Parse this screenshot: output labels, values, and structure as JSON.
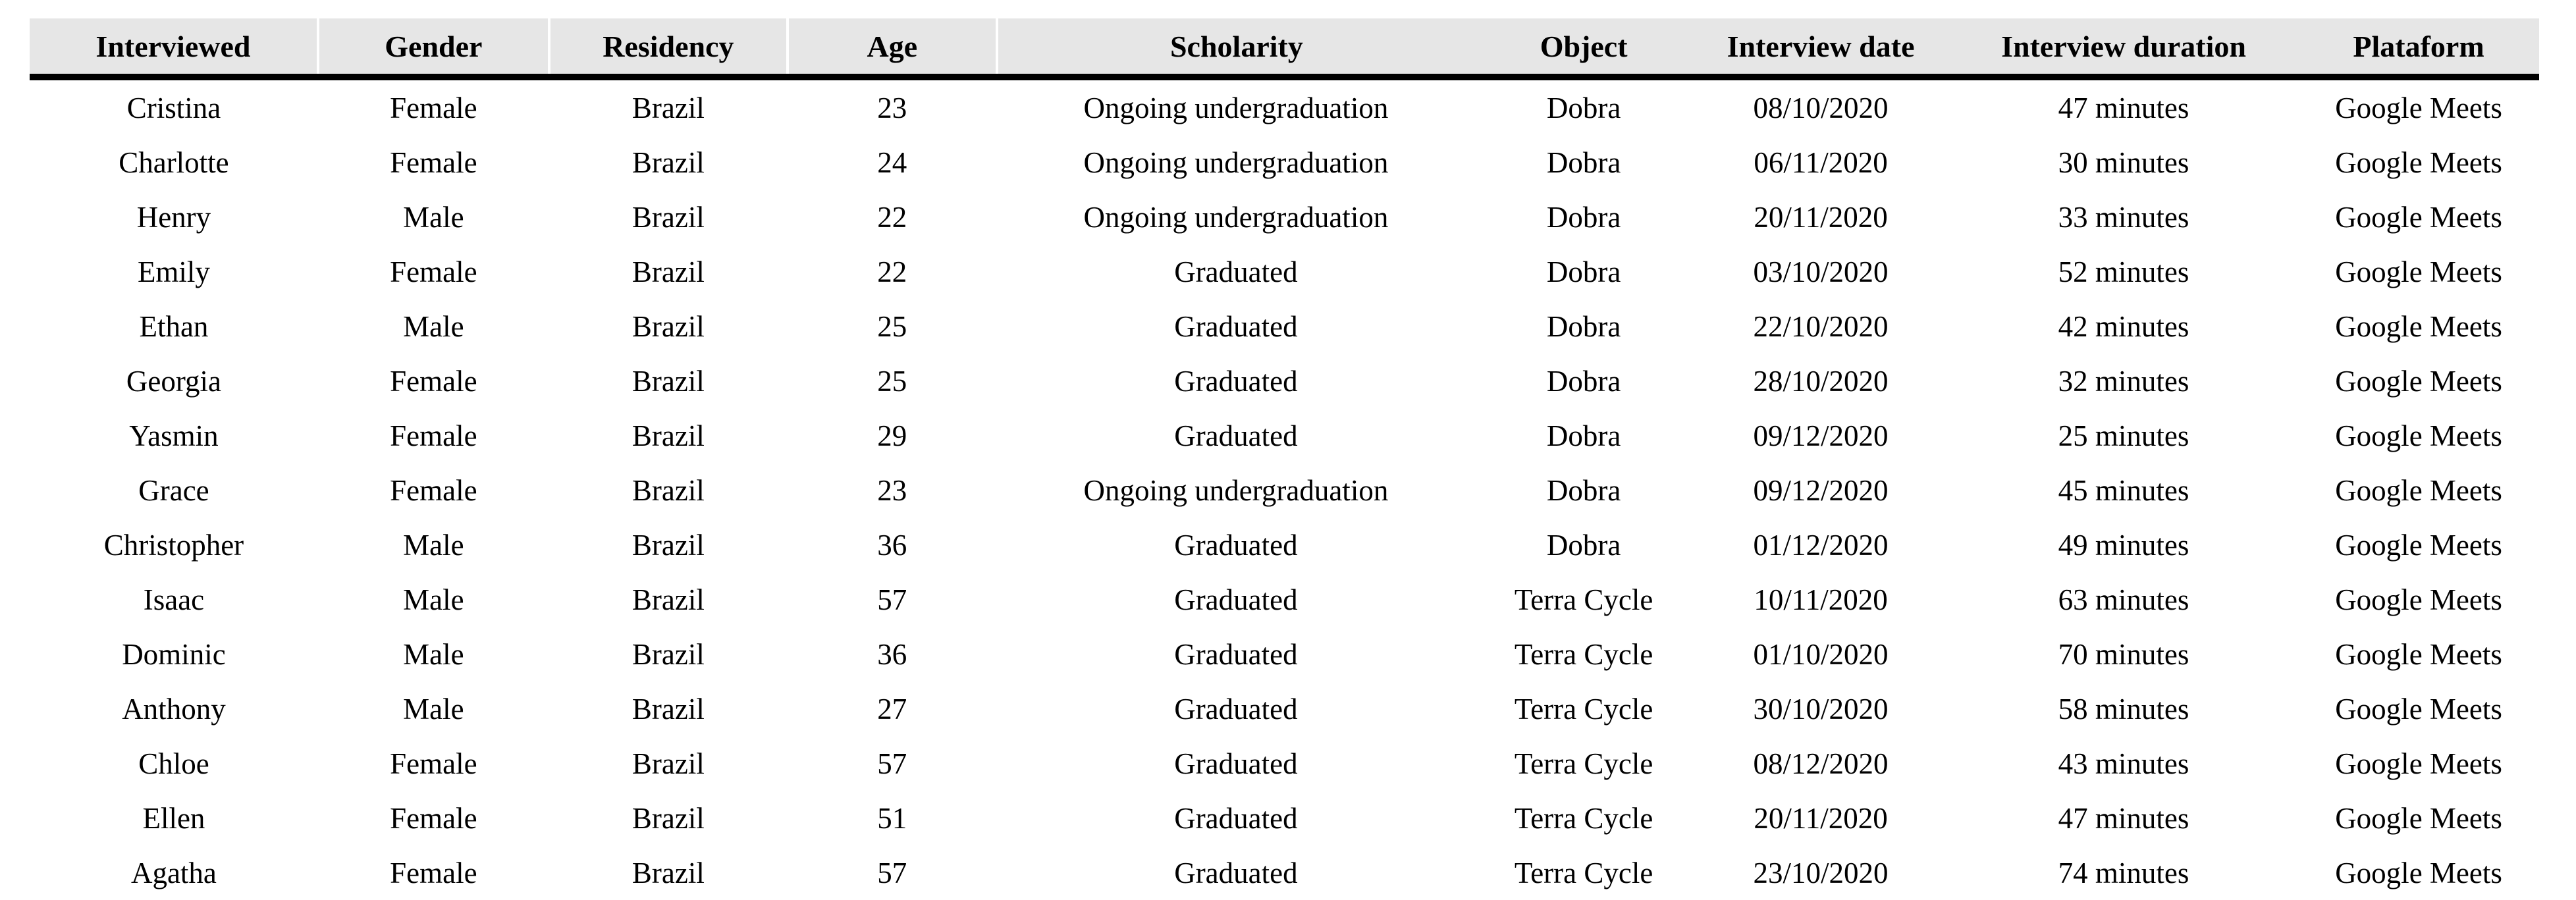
{
  "table": {
    "columns": [
      {
        "key": "interviewed",
        "label": "Interviewed"
      },
      {
        "key": "gender",
        "label": "Gender"
      },
      {
        "key": "residency",
        "label": "Residency"
      },
      {
        "key": "age",
        "label": "Age"
      },
      {
        "key": "scholarity",
        "label": "Scholarity"
      },
      {
        "key": "object",
        "label": "Object"
      },
      {
        "key": "interview_date",
        "label": "Interview date"
      },
      {
        "key": "interview_duration",
        "label": "Interview duration"
      },
      {
        "key": "platform",
        "label": "Plataform"
      }
    ],
    "rows": [
      {
        "interviewed": "Cristina",
        "gender": "Female",
        "residency": "Brazil",
        "age": "23",
        "scholarity": "Ongoing undergraduation",
        "object": "Dobra",
        "interview_date": "08/10/2020",
        "interview_duration": "47 minutes",
        "platform": "Google Meets"
      },
      {
        "interviewed": "Charlotte",
        "gender": "Female",
        "residency": "Brazil",
        "age": "24",
        "scholarity": "Ongoing undergraduation",
        "object": "Dobra",
        "interview_date": "06/11/2020",
        "interview_duration": "30 minutes",
        "platform": "Google Meets"
      },
      {
        "interviewed": "Henry",
        "gender": "Male",
        "residency": "Brazil",
        "age": "22",
        "scholarity": "Ongoing undergraduation",
        "object": "Dobra",
        "interview_date": "20/11/2020",
        "interview_duration": "33 minutes",
        "platform": "Google Meets"
      },
      {
        "interviewed": "Emily",
        "gender": "Female",
        "residency": "Brazil",
        "age": "22",
        "scholarity": "Graduated",
        "object": "Dobra",
        "interview_date": "03/10/2020",
        "interview_duration": "52 minutes",
        "platform": "Google Meets"
      },
      {
        "interviewed": "Ethan",
        "gender": "Male",
        "residency": "Brazil",
        "age": "25",
        "scholarity": "Graduated",
        "object": "Dobra",
        "interview_date": "22/10/2020",
        "interview_duration": "42 minutes",
        "platform": "Google Meets"
      },
      {
        "interviewed": "Georgia",
        "gender": "Female",
        "residency": "Brazil",
        "age": "25",
        "scholarity": "Graduated",
        "object": "Dobra",
        "interview_date": "28/10/2020",
        "interview_duration": "32 minutes",
        "platform": "Google Meets"
      },
      {
        "interviewed": "Yasmin",
        "gender": "Female",
        "residency": "Brazil",
        "age": "29",
        "scholarity": "Graduated",
        "object": "Dobra",
        "interview_date": "09/12/2020",
        "interview_duration": "25 minutes",
        "platform": "Google Meets"
      },
      {
        "interviewed": "Grace",
        "gender": "Female",
        "residency": "Brazil",
        "age": "23",
        "scholarity": "Ongoing undergraduation",
        "object": "Dobra",
        "interview_date": "09/12/2020",
        "interview_duration": "45 minutes",
        "platform": "Google Meets"
      },
      {
        "interviewed": "Christopher",
        "gender": "Male",
        "residency": "Brazil",
        "age": "36",
        "scholarity": "Graduated",
        "object": "Dobra",
        "interview_date": "01/12/2020",
        "interview_duration": "49 minutes",
        "platform": "Google Meets"
      },
      {
        "interviewed": "Isaac",
        "gender": "Male",
        "residency": "Brazil",
        "age": "57",
        "scholarity": "Graduated",
        "object": "Terra Cycle",
        "interview_date": "10/11/2020",
        "interview_duration": "63 minutes",
        "platform": "Google Meets"
      },
      {
        "interviewed": "Dominic",
        "gender": "Male",
        "residency": "Brazil",
        "age": "36",
        "scholarity": "Graduated",
        "object": "Terra Cycle",
        "interview_date": "01/10/2020",
        "interview_duration": "70 minutes",
        "platform": "Google Meets"
      },
      {
        "interviewed": "Anthony",
        "gender": "Male",
        "residency": "Brazil",
        "age": "27",
        "scholarity": "Graduated",
        "object": "Terra Cycle",
        "interview_date": "30/10/2020",
        "interview_duration": "58 minutes",
        "platform": "Google Meets"
      },
      {
        "interviewed": "Chloe",
        "gender": "Female",
        "residency": "Brazil",
        "age": "57",
        "scholarity": "Graduated",
        "object": "Terra Cycle",
        "interview_date": "08/12/2020",
        "interview_duration": "43 minutes",
        "platform": "Google Meets"
      },
      {
        "interviewed": "Ellen",
        "gender": "Female",
        "residency": "Brazil",
        "age": "51",
        "scholarity": "Graduated",
        "object": "Terra Cycle",
        "interview_date": "20/11/2020",
        "interview_duration": "47 minutes",
        "platform": "Google Meets"
      },
      {
        "interviewed": "Agatha",
        "gender": "Female",
        "residency": "Brazil",
        "age": "57",
        "scholarity": "Graduated",
        "object": "Terra Cycle",
        "interview_date": "23/10/2020",
        "interview_duration": "74 minutes",
        "platform": "Google Meets"
      }
    ]
  },
  "colors": {
    "header_bg": "#e6e6e6",
    "rule": "#000000",
    "separator": "#ffffff",
    "text": "#000000"
  }
}
